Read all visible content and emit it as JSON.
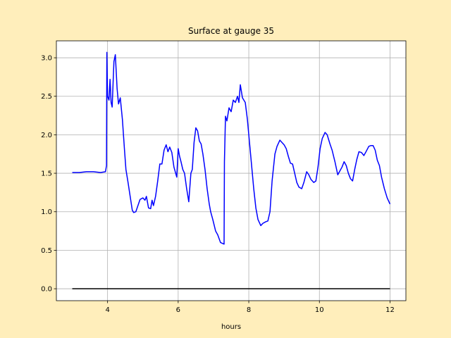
{
  "chart_data": {
    "type": "line",
    "title": "Surface at gauge 35",
    "xlabel": "hours",
    "xlim": [
      2.55,
      12.45
    ],
    "xticks": [
      4,
      6,
      8,
      10,
      12
    ],
    "ylim": [
      -0.155,
      3.22
    ],
    "yticks": [
      {
        "value": 0,
        "label": "0.0"
      },
      {
        "value": 0.5,
        "label": "0.5"
      },
      {
        "value": 1,
        "label": "1.0"
      },
      {
        "value": 1.5,
        "label": "1.5"
      },
      {
        "value": 2,
        "label": "2.0"
      },
      {
        "value": 2.5,
        "label": "2.5"
      },
      {
        "value": 3,
        "label": "3.0"
      }
    ],
    "grid": true,
    "series": [
      {
        "color": "#0000ff",
        "x": [
          3.0,
          3.2,
          3.4,
          3.6,
          3.8,
          3.94,
          3.97,
          3.98,
          4.0,
          4.04,
          4.07,
          4.1,
          4.13,
          4.18,
          4.22,
          4.27,
          4.31,
          4.36,
          4.42,
          4.48,
          4.52,
          4.58,
          4.64,
          4.7,
          4.74,
          4.8,
          4.86,
          4.92,
          5.0,
          5.06,
          5.1,
          5.16,
          5.22,
          5.26,
          5.3,
          5.36,
          5.42,
          5.48,
          5.54,
          5.6,
          5.66,
          5.71,
          5.76,
          5.82,
          5.88,
          5.96,
          6.0,
          6.04,
          6.08,
          6.13,
          6.18,
          6.24,
          6.3,
          6.36,
          6.4,
          6.45,
          6.5,
          6.55,
          6.6,
          6.65,
          6.7,
          6.76,
          6.82,
          6.88,
          6.92,
          6.98,
          7.06,
          7.12,
          7.2,
          7.3,
          7.31,
          7.34,
          7.38,
          7.44,
          7.5,
          7.56,
          7.62,
          7.68,
          7.72,
          7.76,
          7.82,
          7.9,
          7.96,
          8.02,
          8.08,
          8.14,
          8.2,
          8.26,
          8.34,
          8.4,
          8.48,
          8.54,
          8.6,
          8.66,
          8.74,
          8.8,
          8.88,
          8.94,
          9.0,
          9.06,
          9.12,
          9.18,
          9.24,
          9.3,
          9.36,
          9.42,
          9.5,
          9.56,
          9.64,
          9.7,
          9.76,
          9.84,
          9.9,
          9.96,
          10.02,
          10.08,
          10.16,
          10.22,
          10.3,
          10.36,
          10.44,
          10.52,
          10.58,
          10.64,
          10.7,
          10.76,
          10.82,
          10.88,
          10.94,
          11.0,
          11.06,
          11.12,
          11.19,
          11.26,
          11.32,
          11.4,
          11.46,
          11.52,
          11.58,
          11.64,
          11.7,
          11.76,
          11.84,
          11.92,
          12.0
        ],
        "values": [
          1.51,
          1.51,
          1.52,
          1.52,
          1.51,
          1.52,
          1.6,
          3.07,
          2.5,
          2.45,
          2.72,
          2.42,
          2.36,
          2.95,
          3.04,
          2.6,
          2.4,
          2.48,
          2.2,
          1.8,
          1.55,
          1.38,
          1.2,
          1.02,
          0.99,
          1.0,
          1.08,
          1.16,
          1.18,
          1.15,
          1.2,
          1.05,
          1.04,
          1.15,
          1.08,
          1.2,
          1.4,
          1.62,
          1.62,
          1.8,
          1.87,
          1.78,
          1.84,
          1.77,
          1.58,
          1.45,
          1.82,
          1.72,
          1.65,
          1.55,
          1.5,
          1.3,
          1.13,
          1.5,
          1.55,
          1.9,
          2.09,
          2.05,
          1.92,
          1.88,
          1.75,
          1.55,
          1.3,
          1.1,
          1.0,
          0.9,
          0.75,
          0.7,
          0.6,
          0.58,
          1.65,
          2.24,
          2.18,
          2.35,
          2.3,
          2.45,
          2.42,
          2.5,
          2.42,
          2.65,
          2.48,
          2.42,
          2.2,
          1.9,
          1.6,
          1.3,
          1.05,
          0.9,
          0.82,
          0.85,
          0.87,
          0.88,
          1.0,
          1.4,
          1.75,
          1.85,
          1.93,
          1.9,
          1.87,
          1.82,
          1.72,
          1.63,
          1.62,
          1.5,
          1.38,
          1.32,
          1.3,
          1.38,
          1.52,
          1.48,
          1.42,
          1.38,
          1.4,
          1.58,
          1.82,
          1.95,
          2.03,
          2.0,
          1.88,
          1.8,
          1.65,
          1.48,
          1.53,
          1.58,
          1.65,
          1.6,
          1.5,
          1.43,
          1.4,
          1.55,
          1.68,
          1.78,
          1.77,
          1.73,
          1.78,
          1.85,
          1.86,
          1.86,
          1.8,
          1.67,
          1.6,
          1.45,
          1.3,
          1.18,
          1.1
        ]
      },
      {
        "color": "#000000",
        "x": [
          3,
          12
        ],
        "values": [
          0,
          0
        ]
      }
    ]
  }
}
